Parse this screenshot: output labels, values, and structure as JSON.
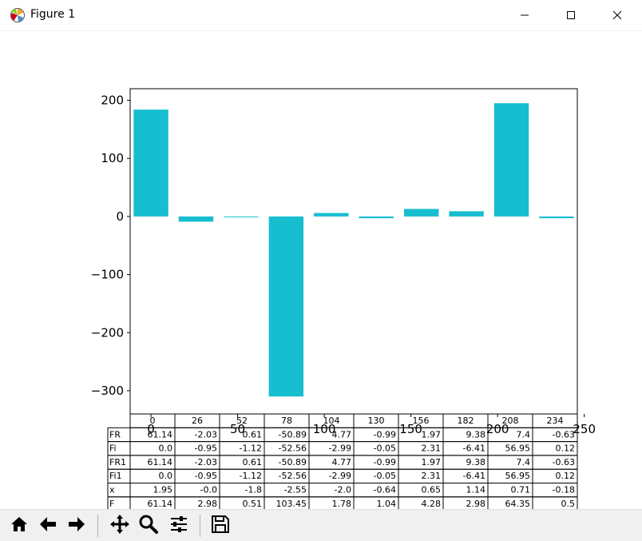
{
  "window": {
    "title": "Figure 1",
    "icon": "matplotlib-icon",
    "controls": [
      "minimize-icon",
      "maximize-icon",
      "close-icon"
    ]
  },
  "toolbar": {
    "buttons": [
      "home-icon",
      "back-arrow-icon",
      "forward-arrow-icon",
      "pan-icon",
      "zoom-icon",
      "configure-subplots-icon",
      "save-icon"
    ]
  },
  "chart_data": {
    "type": "bar",
    "x": [
      0,
      26,
      52,
      78,
      104,
      130,
      156,
      182,
      208,
      234
    ],
    "values": [
      184,
      -9,
      -1,
      -310,
      6,
      -3,
      13,
      9,
      195,
      -3
    ],
    "bar_color": "#17becf",
    "xlim": [
      -12,
      246
    ],
    "ylim": [
      -340,
      220
    ],
    "yticks": [
      200,
      100,
      0,
      -100,
      -200,
      -300
    ],
    "xticks": [
      0,
      50,
      100,
      150,
      200,
      250
    ],
    "title": "",
    "xlabel": "",
    "ylabel": "",
    "grid": false,
    "table": {
      "columns": [
        "0",
        "26",
        "52",
        "78",
        "104",
        "130",
        "156",
        "182",
        "208",
        "234"
      ],
      "rows": [
        {
          "label": "FR",
          "cells": [
            "61.14",
            "-2.03",
            "0.61",
            "-50.89",
            "4.77",
            "-0.99",
            "1.97",
            "9.38",
            "7.4",
            "-0.63"
          ]
        },
        {
          "label": "Fi",
          "cells": [
            "0.0",
            "-0.95",
            "-1.12",
            "-52.56",
            "-2.99",
            "-0.05",
            "2.31",
            "-6.41",
            "56.95",
            "0.12"
          ]
        },
        {
          "label": "FR1",
          "cells": [
            "61.14",
            "-2.03",
            "0.61",
            "-50.89",
            "4.77",
            "-0.99",
            "1.97",
            "9.38",
            "7.4",
            "-0.63"
          ]
        },
        {
          "label": "Fi1",
          "cells": [
            "0.0",
            "-0.95",
            "-1.12",
            "-52.56",
            "-2.99",
            "-0.05",
            "2.31",
            "-6.41",
            "56.95",
            "0.12"
          ]
        },
        {
          "label": "x",
          "cells": [
            "1.95",
            "-0.0",
            "-1.8",
            "-2.55",
            "-2.0",
            "-0.64",
            "0.65",
            "1.14",
            "0.71",
            "-0.18"
          ]
        },
        {
          "label": "F",
          "cells": [
            "61.14",
            "2.98",
            "0.51",
            "103.45",
            "1.78",
            "1.04",
            "4.28",
            "2.98",
            "64.35",
            "0.5"
          ]
        }
      ]
    }
  }
}
